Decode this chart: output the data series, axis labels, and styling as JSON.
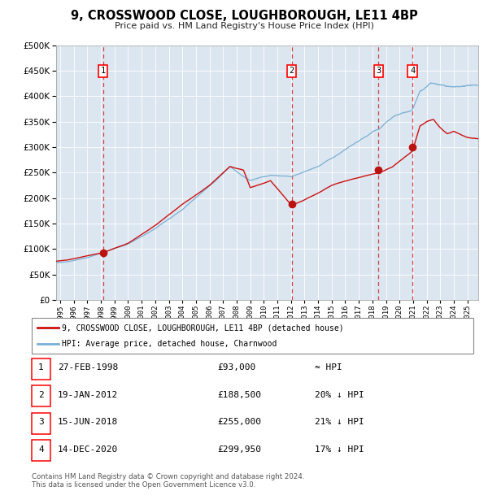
{
  "title": "9, CROSSWOOD CLOSE, LOUGHBOROUGH, LE11 4BP",
  "subtitle": "Price paid vs. HM Land Registry's House Price Index (HPI)",
  "background_color": "#dce6f0",
  "fig_bg_color": "#ffffff",
  "ylim": [
    0,
    500000
  ],
  "yticks": [
    0,
    50000,
    100000,
    150000,
    200000,
    250000,
    300000,
    350000,
    400000,
    450000,
    500000
  ],
  "xlim_start": 1994.7,
  "xlim_end": 2025.8,
  "hpi_color": "#7ab0d4",
  "price_color": "#cc1111",
  "marker_color": "#bb1111",
  "vline_color": "#cc3333",
  "transactions": [
    {
      "num": 1,
      "year": 1998.15,
      "price": 93000
    },
    {
      "num": 2,
      "year": 2012.05,
      "price": 188500
    },
    {
      "num": 3,
      "year": 2018.45,
      "price": 255000
    },
    {
      "num": 4,
      "year": 2020.95,
      "price": 299950
    }
  ],
  "legend_line1": "9, CROSSWOOD CLOSE, LOUGHBOROUGH, LE11 4BP (detached house)",
  "legend_line2": "HPI: Average price, detached house, Charnwood",
  "table_rows": [
    {
      "num": 1,
      "date": "27-FEB-1998",
      "price": "£93,000",
      "hpi": "≈ HPI"
    },
    {
      "num": 2,
      "date": "19-JAN-2012",
      "price": "£188,500",
      "hpi": "20% ↓ HPI"
    },
    {
      "num": 3,
      "date": "15-JUN-2018",
      "price": "£255,000",
      "hpi": "21% ↓ HPI"
    },
    {
      "num": 4,
      "date": "14-DEC-2020",
      "price": "£299,950",
      "hpi": "17% ↓ HPI"
    }
  ],
  "footnote": "Contains HM Land Registry data © Crown copyright and database right 2024.\nThis data is licensed under the Open Government Licence v3.0.",
  "xtick_years": [
    1995,
    1996,
    1997,
    1998,
    1999,
    2000,
    2001,
    2002,
    2003,
    2004,
    2005,
    2006,
    2007,
    2008,
    2009,
    2010,
    2011,
    2012,
    2013,
    2014,
    2015,
    2016,
    2017,
    2018,
    2019,
    2020,
    2021,
    2022,
    2023,
    2024,
    2025
  ]
}
